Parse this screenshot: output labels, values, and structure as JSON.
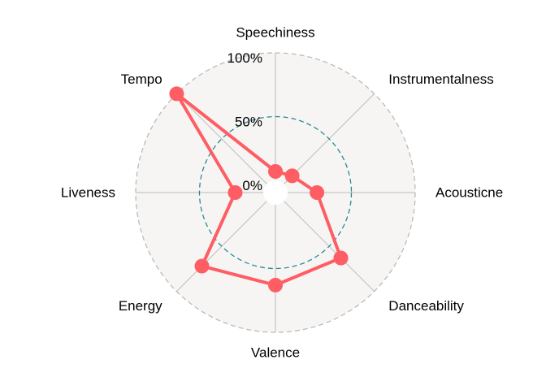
{
  "chart_data": {
    "type": "radar",
    "axes": [
      "Speechiness",
      "Instrumentalness",
      "Acousticness",
      "Danceability",
      "Valence",
      "Energy",
      "Liveness",
      "Tempo"
    ],
    "axis_labels": [
      "Speechiness",
      "Instrumentalness",
      "Acousticne",
      "Danceability",
      "Valence",
      "Energy",
      "Liveness",
      "Tempo"
    ],
    "values": [
      0.07,
      0.09,
      0.23,
      0.63,
      0.63,
      0.72,
      0.22,
      1.0
    ],
    "grid_levels": [
      0,
      0.5,
      1.0
    ],
    "grid_labels": [
      "0%",
      "50%",
      "100%"
    ],
    "range": [
      0,
      1
    ],
    "colors": {
      "series": "#fe5e63",
      "mid_ring": "#2a8a93",
      "outer_ring": "#bbbbbb",
      "spokes": "#c8c8c8",
      "background": "#f6f5f4"
    }
  }
}
